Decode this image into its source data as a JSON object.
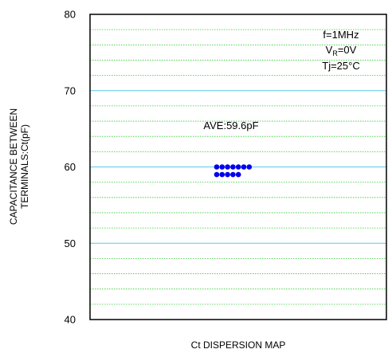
{
  "chart_data": {
    "type": "scatter",
    "title": "",
    "xlabel": "Ct DISPERSION MAP",
    "ylabel_lines": [
      "CAPACITANCE BETWEEN",
      "TERMINALS:Ct(pF)"
    ],
    "ylim": [
      40,
      80
    ],
    "yticks": [
      "40",
      "50",
      "60",
      "70",
      "80"
    ],
    "minor_step": 2,
    "grid": "on",
    "colors": {
      "major_grid": "#5bc8e6",
      "minor_grid": "#33cc33",
      "points": "#0000ee",
      "axes": "#000000"
    },
    "conditions": {
      "freq": "f=1MHz",
      "vr_main": "V",
      "vr_sub": "R",
      "vr_value": "=0V",
      "tj": "Tj=25°C"
    },
    "average_label": "AVE:59.6pF",
    "points": [
      {
        "y": 60.0
      },
      {
        "y": 60.0
      },
      {
        "y": 60.0
      },
      {
        "y": 60.0
      },
      {
        "y": 60.0
      },
      {
        "y": 60.0
      },
      {
        "y": 60.0
      },
      {
        "y": 59.0
      },
      {
        "y": 59.0
      },
      {
        "y": 59.0
      },
      {
        "y": 59.0
      },
      {
        "y": 59.0
      }
    ]
  }
}
